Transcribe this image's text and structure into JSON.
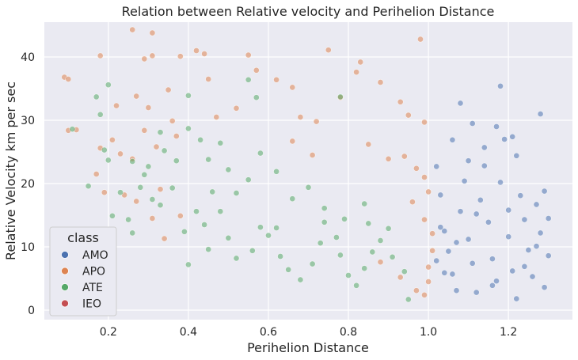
{
  "chart_data": {
    "type": "scatter",
    "title": "Relation between Relative velocity and Perihelion Distance",
    "xlabel": "Perihelion Distance",
    "ylabel": "Relative Velocity km per sec",
    "xlim": [
      0.04,
      1.36
    ],
    "ylim": [
      -1.5,
      45.5
    ],
    "xticks": [
      "0.2",
      "0.4",
      "0.6",
      "0.8",
      "1.0",
      "1.2"
    ],
    "yticks": [
      "0",
      "10",
      "20",
      "30",
      "40"
    ],
    "grid": true,
    "legend": {
      "title": "class",
      "placement": "lower-left",
      "entries": [
        "AMO",
        "APO",
        "ATE",
        "IEO"
      ]
    },
    "colors": {
      "AMO": "#4c72b0",
      "APO": "#dd8452",
      "ATE": "#55a868",
      "IEO": "#c44e52",
      "plot_background": "#eaeaf2",
      "grid": "#ffffff"
    },
    "series": [
      {
        "name": "APO",
        "points": [
          [
            0.09,
            36.8
          ],
          [
            0.1,
            36.5
          ],
          [
            0.18,
            40.2
          ],
          [
            0.26,
            44.3
          ],
          [
            0.31,
            43.8
          ],
          [
            0.31,
            40.2
          ],
          [
            0.29,
            39.7
          ],
          [
            0.38,
            40.1
          ],
          [
            0.42,
            41.0
          ],
          [
            0.44,
            40.5
          ],
          [
            0.55,
            40.3
          ],
          [
            0.75,
            41.1
          ],
          [
            0.82,
            37.6
          ],
          [
            0.83,
            39.2
          ],
          [
            0.98,
            42.8
          ],
          [
            0.22,
            32.3
          ],
          [
            0.27,
            33.8
          ],
          [
            0.3,
            32.0
          ],
          [
            0.35,
            34.8
          ],
          [
            0.36,
            29.9
          ],
          [
            0.47,
            30.5
          ],
          [
            0.52,
            31.9
          ],
          [
            0.68,
            30.5
          ],
          [
            0.78,
            33.6
          ],
          [
            0.88,
            36.0
          ],
          [
            0.93,
            32.9
          ],
          [
            0.95,
            30.8
          ],
          [
            0.99,
            29.7
          ],
          [
            0.1,
            28.4
          ],
          [
            0.12,
            28.5
          ],
          [
            0.18,
            25.6
          ],
          [
            0.17,
            21.5
          ],
          [
            0.23,
            24.7
          ],
          [
            0.26,
            23.9
          ],
          [
            0.32,
            25.8
          ],
          [
            0.33,
            19.1
          ],
          [
            0.19,
            18.6
          ],
          [
            0.24,
            18.2
          ],
          [
            0.27,
            17.2
          ],
          [
            0.31,
            14.5
          ],
          [
            0.34,
            11.3
          ],
          [
            0.38,
            14.9
          ],
          [
            0.21,
            26.9
          ],
          [
            0.29,
            28.4
          ],
          [
            0.37,
            27.5
          ],
          [
            0.62,
            36.4
          ],
          [
            0.45,
            36.5
          ],
          [
            0.57,
            37.9
          ],
          [
            0.66,
            35.2
          ],
          [
            0.72,
            29.8
          ],
          [
            0.66,
            26.7
          ],
          [
            0.71,
            24.5
          ],
          [
            0.85,
            26.2
          ],
          [
            0.9,
            23.9
          ],
          [
            0.94,
            24.3
          ],
          [
            0.97,
            22.4
          ],
          [
            0.99,
            21.0
          ],
          [
            1.0,
            18.7
          ],
          [
            0.96,
            17.1
          ],
          [
            0.99,
            14.3
          ],
          [
            1.01,
            12.1
          ],
          [
            1.01,
            9.4
          ],
          [
            1.0,
            6.8
          ],
          [
            1.0,
            4.5
          ],
          [
            0.99,
            2.4
          ],
          [
            0.97,
            3.1
          ],
          [
            0.93,
            5.2
          ],
          [
            0.88,
            7.6
          ]
        ]
      },
      {
        "name": "ATE",
        "points": [
          [
            0.11,
            28.6
          ],
          [
            0.15,
            19.6
          ],
          [
            0.17,
            33.7
          ],
          [
            0.18,
            30.9
          ],
          [
            0.2,
            35.6
          ],
          [
            0.19,
            25.3
          ],
          [
            0.2,
            23.7
          ],
          [
            0.21,
            14.9
          ],
          [
            0.23,
            18.6
          ],
          [
            0.25,
            14.3
          ],
          [
            0.26,
            23.5
          ],
          [
            0.26,
            12.2
          ],
          [
            0.28,
            19.4
          ],
          [
            0.31,
            17.5
          ],
          [
            0.3,
            22.7
          ],
          [
            0.33,
            28.1
          ],
          [
            0.34,
            25.2
          ],
          [
            0.37,
            23.6
          ],
          [
            0.4,
            33.9
          ],
          [
            0.4,
            28.7
          ],
          [
            0.43,
            26.9
          ],
          [
            0.45,
            23.8
          ],
          [
            0.48,
            26.4
          ],
          [
            0.5,
            22.2
          ],
          [
            0.46,
            18.7
          ],
          [
            0.42,
            15.6
          ],
          [
            0.39,
            12.4
          ],
          [
            0.4,
            7.2
          ],
          [
            0.45,
            9.6
          ],
          [
            0.5,
            11.4
          ],
          [
            0.52,
            8.2
          ],
          [
            0.56,
            9.4
          ],
          [
            0.58,
            13.1
          ],
          [
            0.6,
            11.8
          ],
          [
            0.63,
            8.5
          ],
          [
            0.65,
            6.4
          ],
          [
            0.68,
            4.8
          ],
          [
            0.71,
            7.3
          ],
          [
            0.73,
            10.6
          ],
          [
            0.74,
            13.9
          ],
          [
            0.77,
            11.5
          ],
          [
            0.78,
            8.7
          ],
          [
            0.8,
            5.5
          ],
          [
            0.82,
            3.9
          ],
          [
            0.84,
            6.6
          ],
          [
            0.86,
            9.2
          ],
          [
            0.85,
            13.7
          ],
          [
            0.88,
            11.0
          ],
          [
            0.91,
            8.4
          ],
          [
            0.94,
            6.1
          ],
          [
            0.95,
            1.7
          ],
          [
            0.66,
            17.6
          ],
          [
            0.7,
            19.4
          ],
          [
            0.62,
            21.9
          ],
          [
            0.55,
            20.6
          ],
          [
            0.58,
            24.8
          ],
          [
            0.52,
            18.5
          ],
          [
            0.48,
            15.6
          ],
          [
            0.44,
            13.5
          ],
          [
            0.36,
            19.3
          ],
          [
            0.33,
            16.6
          ],
          [
            0.29,
            21.4
          ],
          [
            0.55,
            36.4
          ],
          [
            0.57,
            33.6
          ],
          [
            0.78,
            33.7
          ],
          [
            0.74,
            16.1
          ],
          [
            0.79,
            14.4
          ],
          [
            0.84,
            16.8
          ],
          [
            0.9,
            12.9
          ],
          [
            0.62,
            13.0
          ]
        ]
      },
      {
        "name": "AMO",
        "points": [
          [
            1.02,
            22.7
          ],
          [
            1.03,
            18.2
          ],
          [
            1.04,
            12.5
          ],
          [
            1.05,
            9.3
          ],
          [
            1.06,
            5.7
          ],
          [
            1.07,
            3.1
          ],
          [
            1.08,
            15.6
          ],
          [
            1.09,
            20.4
          ],
          [
            1.1,
            23.6
          ],
          [
            1.1,
            11.2
          ],
          [
            1.11,
            7.4
          ],
          [
            1.12,
            2.8
          ],
          [
            1.13,
            17.4
          ],
          [
            1.14,
            25.7
          ],
          [
            1.15,
            13.9
          ],
          [
            1.16,
            8.1
          ],
          [
            1.17,
            4.6
          ],
          [
            1.18,
            20.2
          ],
          [
            1.19,
            27.0
          ],
          [
            1.2,
            11.6
          ],
          [
            1.21,
            6.2
          ],
          [
            1.22,
            1.8
          ],
          [
            1.23,
            18.1
          ],
          [
            1.24,
            14.3
          ],
          [
            1.25,
            9.5
          ],
          [
            1.26,
            5.3
          ],
          [
            1.27,
            16.7
          ],
          [
            1.28,
            12.2
          ],
          [
            1.29,
            3.6
          ],
          [
            1.29,
            18.8
          ],
          [
            1.3,
            8.6
          ],
          [
            1.28,
            31.0
          ],
          [
            1.18,
            35.4
          ],
          [
            1.08,
            32.7
          ],
          [
            1.17,
            29.0
          ],
          [
            1.11,
            29.5
          ],
          [
            1.21,
            27.4
          ],
          [
            1.06,
            26.9
          ],
          [
            1.14,
            22.8
          ],
          [
            1.22,
            24.4
          ],
          [
            1.3,
            14.5
          ],
          [
            1.03,
            13.1
          ],
          [
            1.04,
            5.9
          ],
          [
            1.07,
            10.7
          ],
          [
            1.12,
            15.2
          ],
          [
            1.16,
            3.9
          ],
          [
            1.2,
            15.8
          ],
          [
            1.24,
            6.9
          ],
          [
            1.27,
            10.1
          ],
          [
            1.02,
            7.8
          ]
        ]
      },
      {
        "name": "IEO",
        "points": []
      }
    ]
  }
}
